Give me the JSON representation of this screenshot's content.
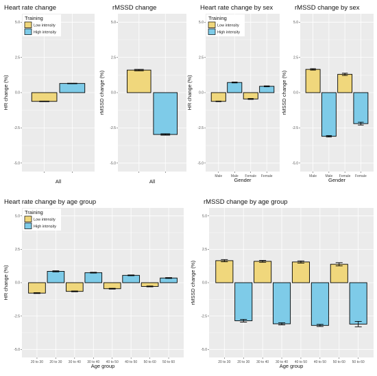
{
  "colors": {
    "low": "#F0D77C",
    "high": "#7ECBE8",
    "panel": "#EBEBEB",
    "grid": "#FFFFFF"
  },
  "chart_data": [
    {
      "type": "bar",
      "title": "Heart rate change",
      "ylabel": "HR change (%)",
      "xlabel": "All",
      "categories": [
        ""
      ],
      "ylim": [
        -5.6,
        5.6
      ],
      "yticks": [
        5,
        2.5,
        0,
        -2.5,
        -5
      ],
      "ytick_labels": [
        "5.0",
        "2.5",
        "0.0",
        "-2.5",
        "-5.0"
      ],
      "legend": {
        "title": "Training",
        "items": [
          "Low intensity",
          "High intensity"
        ],
        "position": "top-left"
      },
      "series": [
        {
          "name": "Low intensity",
          "values": [
            -0.62
          ],
          "errors": [
            0.02
          ]
        },
        {
          "name": "High intensity",
          "values": [
            0.65
          ],
          "errors": [
            0.02
          ]
        }
      ]
    },
    {
      "type": "bar",
      "title": "rMSSD change",
      "ylabel": "rMSSD change (%)",
      "xlabel": "All",
      "categories": [
        ""
      ],
      "ylim": [
        -5.6,
        5.6
      ],
      "yticks": [
        5,
        2.5,
        0,
        -2.5,
        -5
      ],
      "ytick_labels": [
        "5.0",
        "2.5",
        "0.0",
        "-2.5",
        "-5.0"
      ],
      "series": [
        {
          "name": "Low intensity",
          "values": [
            1.6
          ],
          "errors": [
            0.05
          ]
        },
        {
          "name": "High intensity",
          "values": [
            -2.97
          ],
          "errors": [
            0.05
          ]
        }
      ]
    },
    {
      "type": "bar",
      "title": "Heart rate change by sex",
      "ylabel": "HR change (%)",
      "xlabel": "Gender",
      "categories": [
        "Male",
        "Female"
      ],
      "ylim": [
        -5.6,
        5.6
      ],
      "yticks": [
        5,
        2.5,
        0,
        -2.5,
        -5
      ],
      "ytick_labels": [
        "5.0",
        "2.5",
        "0.0",
        "-2.5",
        "-5.0"
      ],
      "legend": {
        "title": "Training",
        "items": [
          "Low intensity",
          "High intensity"
        ],
        "position": "top-left"
      },
      "series": [
        {
          "name": "Low intensity",
          "values": [
            -0.62,
            -0.45
          ],
          "errors": [
            0.02,
            0.03
          ]
        },
        {
          "name": "High intensity",
          "values": [
            0.72,
            0.45
          ],
          "errors": [
            0.03,
            0.03
          ]
        }
      ]
    },
    {
      "type": "bar",
      "title": "rMSSD change by sex",
      "ylabel": "rMSSD change (%)",
      "xlabel": "Gender",
      "categories": [
        "Male",
        "Female"
      ],
      "ylim": [
        -5.6,
        5.6
      ],
      "yticks": [
        5,
        2.5,
        0,
        -2.5,
        -5
      ],
      "ytick_labels": [
        "5.0",
        "2.5",
        "0.0",
        "-2.5",
        "-5.0"
      ],
      "series": [
        {
          "name": "Low intensity",
          "values": [
            1.65,
            1.3
          ],
          "errors": [
            0.05,
            0.08
          ]
        },
        {
          "name": "High intensity",
          "values": [
            -3.1,
            -2.2
          ],
          "errors": [
            0.05,
            0.1
          ]
        }
      ]
    },
    {
      "type": "bar",
      "title": "Heart rate change by age group",
      "ylabel": "HR change (%)",
      "xlabel": "Age group",
      "categories": [
        "20 to 30",
        "30 to 40",
        "40 to 50",
        "50 to 60"
      ],
      "ylim": [
        -5.6,
        5.6
      ],
      "yticks": [
        5,
        2.5,
        0,
        -2.5,
        -5
      ],
      "ytick_labels": [
        "5.0",
        "2.5",
        "0.0",
        "-2.5",
        "-5.0"
      ],
      "legend": {
        "title": "Training",
        "items": [
          "Low intensity",
          "High intensity"
        ],
        "position": "top-left"
      },
      "series": [
        {
          "name": "Low intensity",
          "values": [
            -0.78,
            -0.65,
            -0.45,
            -0.28
          ],
          "errors": [
            0.03,
            0.03,
            0.03,
            0.03
          ]
        },
        {
          "name": "High intensity",
          "values": [
            0.85,
            0.75,
            0.55,
            0.35
          ],
          "errors": [
            0.04,
            0.03,
            0.03,
            0.03
          ]
        }
      ]
    },
    {
      "type": "bar",
      "title": "rMSSD change by age group",
      "ylabel": "rMSSD change (%)",
      "xlabel": "Age group",
      "categories": [
        "20 to 30",
        "30 to 40",
        "40 to 50",
        "50 to 60"
      ],
      "ylim": [
        -5.6,
        5.6
      ],
      "yticks": [
        5,
        2.5,
        0,
        -2.5,
        -5
      ],
      "ytick_labels": [
        "5.0",
        "2.5",
        "0.0",
        "-2.5",
        "-5.0"
      ],
      "series": [
        {
          "name": "Low intensity",
          "values": [
            1.65,
            1.6,
            1.55,
            1.38
          ],
          "errors": [
            0.08,
            0.07,
            0.08,
            0.12
          ]
        },
        {
          "name": "High intensity",
          "values": [
            -2.85,
            -3.08,
            -3.2,
            -3.1
          ],
          "errors": [
            0.1,
            0.08,
            0.08,
            0.2
          ]
        }
      ]
    }
  ]
}
